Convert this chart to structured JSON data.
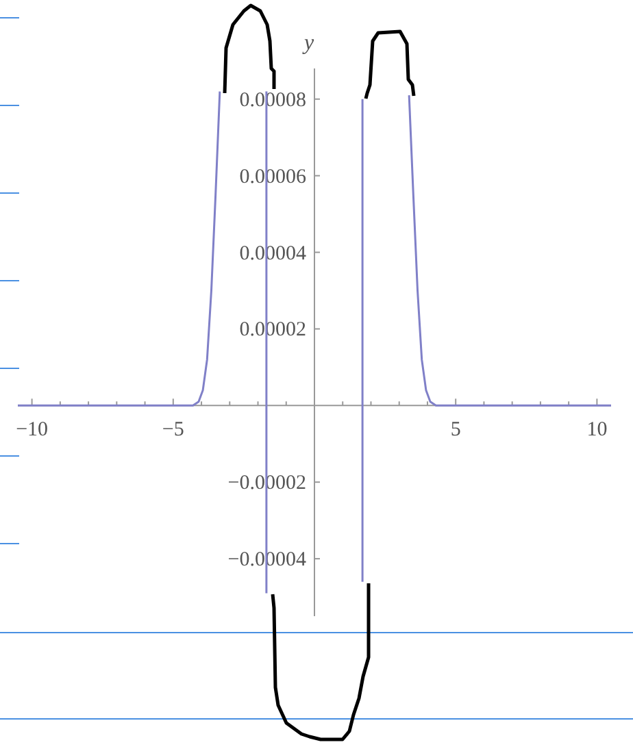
{
  "chart_data": {
    "type": "line",
    "ylabel": "y",
    "xlim": [
      -10.5,
      10.5
    ],
    "ylim": [
      -5.5e-05,
      8.8e-05
    ],
    "xticks": [
      {
        "value": -10,
        "label": "−10"
      },
      {
        "value": -9,
        "label": null
      },
      {
        "value": -8,
        "label": null
      },
      {
        "value": -7,
        "label": null
      },
      {
        "value": -6,
        "label": null
      },
      {
        "value": -5,
        "label": "−5"
      },
      {
        "value": -4,
        "label": null
      },
      {
        "value": -3,
        "label": null
      },
      {
        "value": -2,
        "label": null
      },
      {
        "value": -1,
        "label": null
      },
      {
        "value": 1,
        "label": null
      },
      {
        "value": 2,
        "label": null
      },
      {
        "value": 3,
        "label": null
      },
      {
        "value": 4,
        "label": null
      },
      {
        "value": 5,
        "label": "5"
      },
      {
        "value": 6,
        "label": null
      },
      {
        "value": 7,
        "label": null
      },
      {
        "value": 8,
        "label": null
      },
      {
        "value": 9,
        "label": null
      },
      {
        "value": 10,
        "label": "10"
      }
    ],
    "yticks": [
      {
        "value": -4e-05,
        "label": "−0.00004"
      },
      {
        "value": -2e-05,
        "label": "−0.00002"
      },
      {
        "value": 2e-05,
        "label": "0.00002"
      },
      {
        "value": 4e-05,
        "label": "0.00004"
      },
      {
        "value": 6e-05,
        "label": "0.00006"
      },
      {
        "value": 8e-05,
        "label": "0.00008"
      }
    ],
    "grid": false,
    "marker": "none",
    "line_style": "solid",
    "series": [
      {
        "color": "#8080c8",
        "x": [
          -10.5,
          -4.3,
          -4.1,
          -3.95,
          -3.8,
          -3.65,
          -3.5,
          -3.35
        ],
        "values": [
          0,
          0,
          1e-06,
          4e-06,
          1.2e-05,
          3e-05,
          5.5e-05,
          8.2e-05
        ]
      },
      {
        "color": "#8080c8",
        "x": [
          -1.7,
          -1.7
        ],
        "values": [
          8.2e-05,
          -4.9e-05
        ]
      },
      {
        "color": "#8080c8",
        "x": [
          1.7,
          1.7
        ],
        "values": [
          -4.6e-05,
          8e-05
        ]
      },
      {
        "color": "#8080c8",
        "x": [
          3.35,
          3.5,
          3.65,
          3.8,
          3.95,
          4.1,
          4.3,
          10.5
        ],
        "values": [
          8.1e-05,
          5.5e-05,
          3e-05,
          1.2e-05,
          4e-06,
          1e-06,
          0,
          0
        ]
      }
    ]
  }
}
